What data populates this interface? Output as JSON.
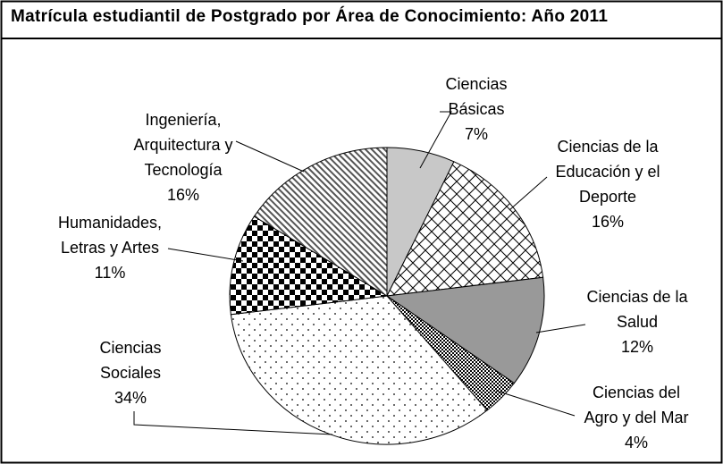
{
  "chart_data": {
    "type": "pie",
    "title": "Matrícula estudiantil de Postgrado por Área de Conocimiento: Año 2011",
    "categories": [
      "Ciencias Básicas",
      "Ciencias de la Educación y el Deporte",
      "Ciencias de la Salud",
      "Ciencias del Agro y del Mar",
      "Ciencias Sociales",
      "Humanidades, Letras y Artes",
      "Ingeniería, Arquitectura y Tecnología"
    ],
    "values": [
      7,
      16,
      12,
      4,
      34,
      11,
      16
    ],
    "value_labels": [
      "7%",
      "16%",
      "12%",
      "4%",
      "34%",
      "11%",
      "16%"
    ]
  }
}
